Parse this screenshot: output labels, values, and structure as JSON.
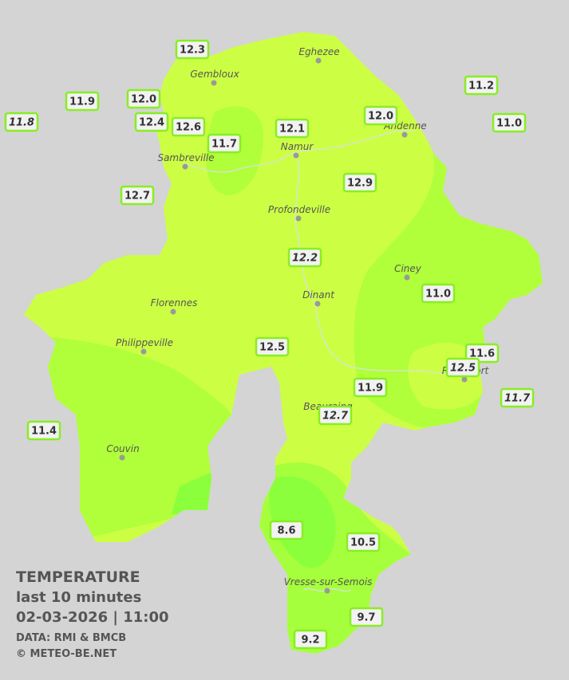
{
  "title": "TEMPERATURE",
  "subtitle": "last 10 minutes",
  "datetime": "02-03-2026  |  11:00",
  "source": "DATA: RMI & BMCB",
  "credit": "© METEO-BE.NET",
  "towns": [
    {
      "name": "Eghezee"
    },
    {
      "name": "Gembloux"
    },
    {
      "name": "Andenne"
    },
    {
      "name": "Namur"
    },
    {
      "name": "Sambreville"
    },
    {
      "name": "Profondeville"
    },
    {
      "name": "Ciney"
    },
    {
      "name": "Dinant"
    },
    {
      "name": "Florennes"
    },
    {
      "name": "Philippeville"
    },
    {
      "name": "Rochefort"
    },
    {
      "name": "Beauraing"
    },
    {
      "name": "Couvin"
    },
    {
      "name": "Vresse-sur-Semois"
    }
  ],
  "stations": [
    {
      "label": "12.3",
      "italic": false
    },
    {
      "label": "11.9",
      "italic": false
    },
    {
      "label": "11.8",
      "italic": true
    },
    {
      "label": "12.0",
      "italic": false
    },
    {
      "label": "12.4",
      "italic": false
    },
    {
      "label": "12.6",
      "italic": false
    },
    {
      "label": "11.7",
      "italic": false
    },
    {
      "label": "12.1",
      "italic": false
    },
    {
      "label": "12.0",
      "italic": false
    },
    {
      "label": "11.2",
      "italic": false
    },
    {
      "label": "11.0",
      "italic": false
    },
    {
      "label": "12.7",
      "italic": false
    },
    {
      "label": "12.9",
      "italic": false
    },
    {
      "label": "12.2",
      "italic": true
    },
    {
      "label": "11.0",
      "italic": false
    },
    {
      "label": "12.5",
      "italic": false
    },
    {
      "label": "11.6",
      "italic": false
    },
    {
      "label": "12.5",
      "italic": true
    },
    {
      "label": "11.9",
      "italic": false
    },
    {
      "label": "11.7",
      "italic": true
    },
    {
      "label": "12.7",
      "italic": true
    },
    {
      "label": "11.4",
      "italic": false
    },
    {
      "label": "8.6",
      "italic": false
    },
    {
      "label": "10.5",
      "italic": false
    },
    {
      "label": "9.7",
      "italic": false
    },
    {
      "label": "9.2",
      "italic": false
    }
  ]
}
